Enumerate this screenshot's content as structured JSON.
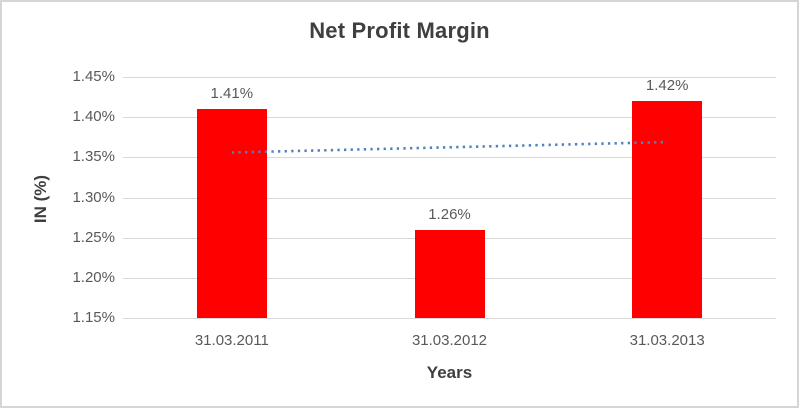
{
  "chart_data": {
    "type": "bar",
    "title": "Net Profit Margin",
    "xlabel": "Years",
    "ylabel": "IN (%)",
    "categories": [
      "31.03.2011",
      "31.03.2012",
      "31.03.2013"
    ],
    "values": [
      1.41,
      1.26,
      1.42
    ],
    "data_labels": [
      "1.41%",
      "1.26%",
      "1.42%"
    ],
    "y_axis": {
      "min": 1.15,
      "max": 1.45,
      "step": 0.05,
      "tick_values": [
        1.45,
        1.4,
        1.35,
        1.3,
        1.25,
        1.2,
        1.15
      ],
      "tick_labels": [
        "1.45%",
        "1.40%",
        "1.35%",
        "1.30%",
        "1.25%",
        "1.20%",
        "1.15%"
      ]
    },
    "trendline": {
      "type": "linear",
      "style": "dotted",
      "start_value": 1.356,
      "end_value": 1.369
    },
    "gridlines": true,
    "legend": "none",
    "colors": {
      "bar": "#ff0000",
      "trendline": "#4f81bd",
      "gridline": "#d9d9d9",
      "tick_text": "#595959",
      "title_text": "#3f3f3f",
      "border": "#d5d5d5",
      "background": "#ffffff"
    }
  }
}
